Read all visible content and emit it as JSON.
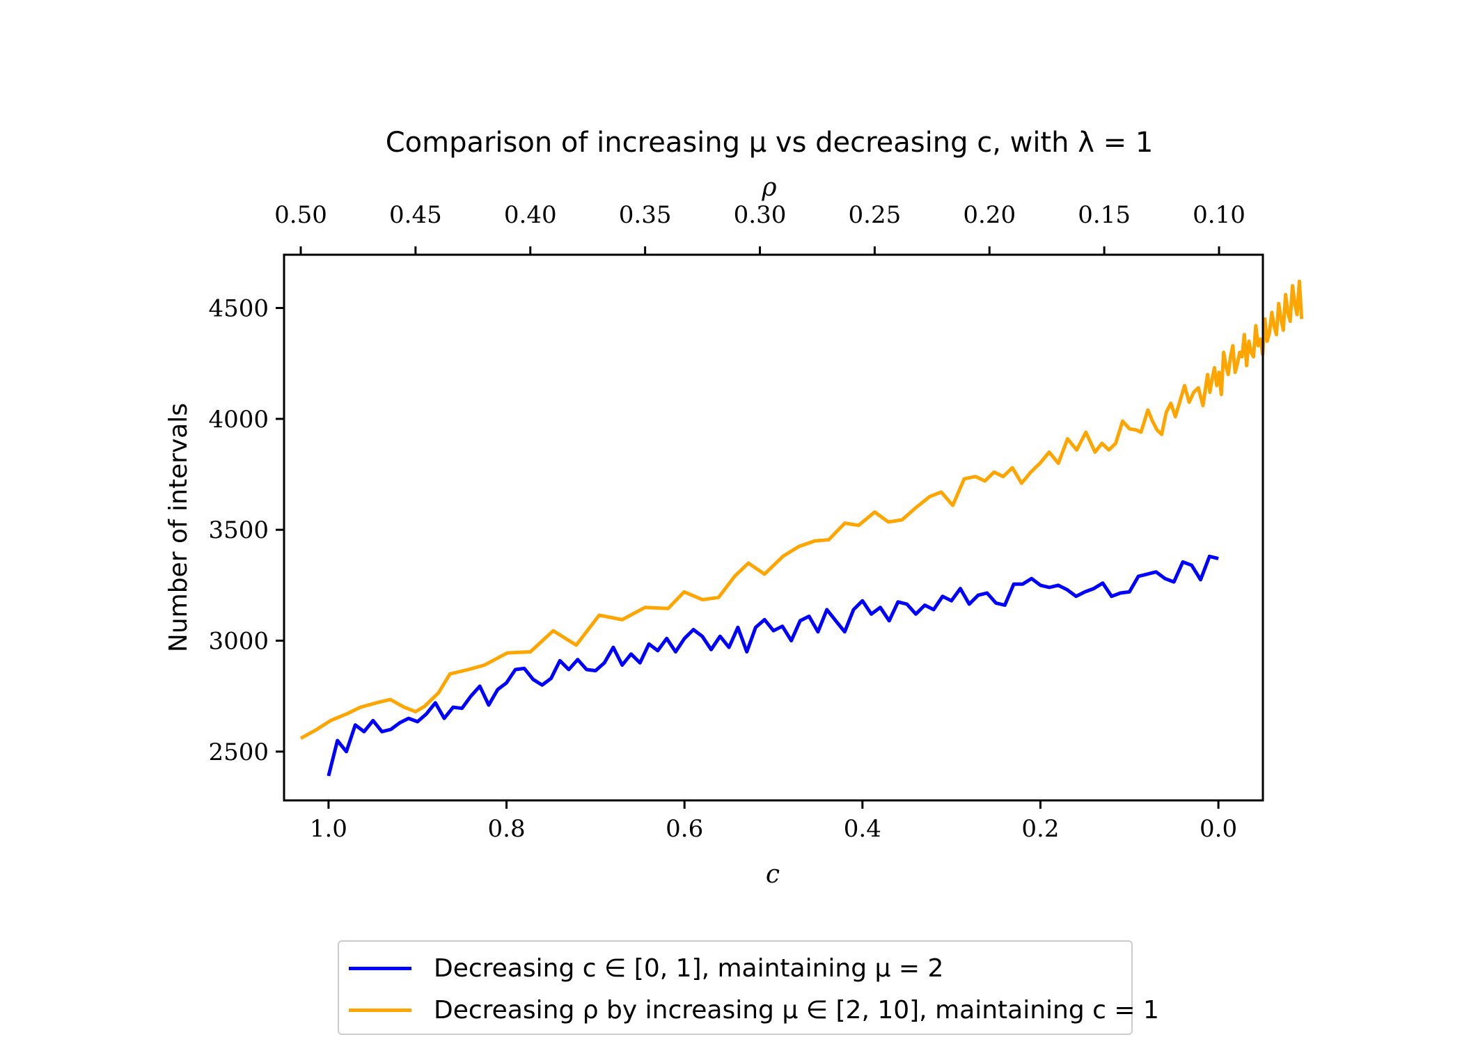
{
  "chart_data": {
    "type": "line",
    "title": "Comparison of increasing μ vs decreasing c, with λ = 1",
    "xlabel": "c",
    "x2label": "ρ",
    "ylabel": "Number of intervals",
    "xlim": [
      1.05,
      -0.05
    ],
    "x2lim": [
      0.5,
      0.1
    ],
    "ylim": [
      2280,
      4740
    ],
    "x_ticks": [
      "1.0",
      "0.8",
      "0.6",
      "0.4",
      "0.2",
      "0.0"
    ],
    "x2_ticks": [
      "0.50",
      "0.45",
      "0.40",
      "0.35",
      "0.30",
      "0.25",
      "0.20",
      "0.15",
      "0.10"
    ],
    "y_ticks": [
      "2500",
      "3000",
      "3500",
      "4000",
      "4500"
    ],
    "grid": false,
    "legend_position": "bottom-outside",
    "series": [
      {
        "name": "Decreasing c ∈ [0, 1], maintaining μ = 2",
        "color": "#0000ff",
        "axis": "c",
        "points": [
          [
            1.0,
            2390
          ],
          [
            0.99,
            2550
          ],
          [
            0.98,
            2500
          ],
          [
            0.97,
            2620
          ],
          [
            0.96,
            2590
          ],
          [
            0.95,
            2640
          ],
          [
            0.94,
            2590
          ],
          [
            0.93,
            2600
          ],
          [
            0.92,
            2630
          ],
          [
            0.91,
            2650
          ],
          [
            0.9,
            2635
          ],
          [
            0.89,
            2670
          ],
          [
            0.88,
            2720
          ],
          [
            0.87,
            2650
          ],
          [
            0.86,
            2700
          ],
          [
            0.85,
            2695
          ],
          [
            0.84,
            2750
          ],
          [
            0.83,
            2795
          ],
          [
            0.82,
            2710
          ],
          [
            0.81,
            2780
          ],
          [
            0.8,
            2810
          ],
          [
            0.79,
            2870
          ],
          [
            0.78,
            2875
          ],
          [
            0.77,
            2825
          ],
          [
            0.76,
            2800
          ],
          [
            0.75,
            2830
          ],
          [
            0.74,
            2910
          ],
          [
            0.73,
            2870
          ],
          [
            0.72,
            2915
          ],
          [
            0.71,
            2870
          ],
          [
            0.7,
            2865
          ],
          [
            0.69,
            2900
          ],
          [
            0.68,
            2970
          ],
          [
            0.67,
            2890
          ],
          [
            0.66,
            2940
          ],
          [
            0.65,
            2900
          ],
          [
            0.64,
            2985
          ],
          [
            0.63,
            2955
          ],
          [
            0.62,
            3010
          ],
          [
            0.61,
            2950
          ],
          [
            0.6,
            3010
          ],
          [
            0.59,
            3050
          ],
          [
            0.58,
            3020
          ],
          [
            0.57,
            2960
          ],
          [
            0.56,
            3020
          ],
          [
            0.55,
            2970
          ],
          [
            0.54,
            3060
          ],
          [
            0.53,
            2950
          ],
          [
            0.52,
            3060
          ],
          [
            0.51,
            3095
          ],
          [
            0.5,
            3045
          ],
          [
            0.49,
            3065
          ],
          [
            0.48,
            3000
          ],
          [
            0.47,
            3090
          ],
          [
            0.46,
            3110
          ],
          [
            0.45,
            3040
          ],
          [
            0.44,
            3140
          ],
          [
            0.43,
            3090
          ],
          [
            0.42,
            3040
          ],
          [
            0.41,
            3140
          ],
          [
            0.4,
            3180
          ],
          [
            0.39,
            3120
          ],
          [
            0.38,
            3150
          ],
          [
            0.37,
            3090
          ],
          [
            0.36,
            3175
          ],
          [
            0.35,
            3165
          ],
          [
            0.34,
            3120
          ],
          [
            0.33,
            3160
          ],
          [
            0.32,
            3140
          ],
          [
            0.31,
            3200
          ],
          [
            0.3,
            3180
          ],
          [
            0.29,
            3235
          ],
          [
            0.28,
            3165
          ],
          [
            0.27,
            3205
          ],
          [
            0.26,
            3215
          ],
          [
            0.25,
            3170
          ],
          [
            0.24,
            3160
          ],
          [
            0.23,
            3255
          ],
          [
            0.22,
            3255
          ],
          [
            0.21,
            3280
          ],
          [
            0.2,
            3250
          ],
          [
            0.19,
            3240
          ],
          [
            0.18,
            3250
          ],
          [
            0.17,
            3230
          ],
          [
            0.16,
            3200
          ],
          [
            0.15,
            3220
          ],
          [
            0.14,
            3235
          ],
          [
            0.13,
            3260
          ],
          [
            0.12,
            3200
          ],
          [
            0.11,
            3215
          ],
          [
            0.1,
            3220
          ],
          [
            0.09,
            3290
          ],
          [
            0.08,
            3300
          ],
          [
            0.07,
            3310
          ],
          [
            0.06,
            3280
          ],
          [
            0.05,
            3265
          ],
          [
            0.04,
            3355
          ],
          [
            0.03,
            3340
          ],
          [
            0.02,
            3275
          ],
          [
            0.01,
            3380
          ],
          [
            0.0,
            3370
          ]
        ]
      },
      {
        "name": "Decreasing ρ by increasing μ ∈ [2, 10], maintaining c = 1",
        "color": "#ffa500",
        "axis": "rho",
        "points": [
          [
            0.5,
            2560
          ],
          [
            0.493,
            2600
          ],
          [
            0.487,
            2640
          ],
          [
            0.48,
            2670
          ],
          [
            0.474,
            2700
          ],
          [
            0.467,
            2720
          ],
          [
            0.461,
            2735
          ],
          [
            0.455,
            2700
          ],
          [
            0.45,
            2680
          ],
          [
            0.446,
            2705
          ],
          [
            0.44,
            2765
          ],
          [
            0.435,
            2850
          ],
          [
            0.427,
            2870
          ],
          [
            0.42,
            2890
          ],
          [
            0.41,
            2945
          ],
          [
            0.4,
            2950
          ],
          [
            0.39,
            3045
          ],
          [
            0.38,
            2980
          ],
          [
            0.37,
            3115
          ],
          [
            0.36,
            3095
          ],
          [
            0.35,
            3150
          ],
          [
            0.34,
            3145
          ],
          [
            0.333,
            3220
          ],
          [
            0.325,
            3185
          ],
          [
            0.318,
            3195
          ],
          [
            0.311,
            3290
          ],
          [
            0.305,
            3350
          ],
          [
            0.298,
            3300
          ],
          [
            0.29,
            3380
          ],
          [
            0.283,
            3425
          ],
          [
            0.276,
            3450
          ],
          [
            0.27,
            3455
          ],
          [
            0.263,
            3530
          ],
          [
            0.257,
            3520
          ],
          [
            0.25,
            3580
          ],
          [
            0.244,
            3535
          ],
          [
            0.238,
            3545
          ],
          [
            0.232,
            3600
          ],
          [
            0.226,
            3650
          ],
          [
            0.221,
            3670
          ],
          [
            0.216,
            3610
          ],
          [
            0.211,
            3730
          ],
          [
            0.206,
            3740
          ],
          [
            0.202,
            3720
          ],
          [
            0.198,
            3760
          ],
          [
            0.194,
            3740
          ],
          [
            0.19,
            3780
          ],
          [
            0.186,
            3710
          ],
          [
            0.182,
            3760
          ],
          [
            0.178,
            3800
          ],
          [
            0.174,
            3850
          ],
          [
            0.17,
            3800
          ],
          [
            0.166,
            3910
          ],
          [
            0.162,
            3860
          ],
          [
            0.158,
            3940
          ],
          [
            0.154,
            3850
          ],
          [
            0.151,
            3890
          ],
          [
            0.148,
            3860
          ],
          [
            0.145,
            3890
          ],
          [
            0.142,
            3990
          ],
          [
            0.139,
            3955
          ],
          [
            0.136,
            3950
          ],
          [
            0.134,
            3940
          ],
          [
            0.131,
            4040
          ],
          [
            0.129,
            3990
          ],
          [
            0.127,
            3950
          ],
          [
            0.125,
            3930
          ],
          [
            0.123,
            4030
          ],
          [
            0.121,
            4070
          ],
          [
            0.119,
            4010
          ],
          [
            0.117,
            4080
          ],
          [
            0.115,
            4150
          ],
          [
            0.113,
            4075
          ],
          [
            0.111,
            4120
          ],
          [
            0.109,
            4140
          ],
          [
            0.107,
            4060
          ],
          [
            0.106,
            4130
          ],
          [
            0.105,
            4200
          ],
          [
            0.104,
            4120
          ],
          [
            0.103,
            4180
          ],
          [
            0.102,
            4230
          ],
          [
            0.101,
            4150
          ],
          [
            0.1,
            4210
          ],
          [
            0.099,
            4110
          ],
          [
            0.098,
            4300
          ],
          [
            0.097,
            4240
          ],
          [
            0.096,
            4200
          ],
          [
            0.095,
            4280
          ],
          [
            0.094,
            4330
          ],
          [
            0.093,
            4210
          ],
          [
            0.092,
            4250
          ],
          [
            0.091,
            4300
          ],
          [
            0.09,
            4280
          ],
          [
            0.089,
            4380
          ],
          [
            0.088,
            4240
          ],
          [
            0.087,
            4350
          ],
          [
            0.086,
            4300
          ],
          [
            0.085,
            4280
          ],
          [
            0.084,
            4420
          ],
          [
            0.083,
            4330
          ],
          [
            0.082,
            4360
          ],
          [
            0.081,
            4290
          ],
          [
            0.08,
            4450
          ],
          [
            0.079,
            4350
          ],
          [
            0.078,
            4390
          ],
          [
            0.077,
            4480
          ],
          [
            0.076,
            4420
          ],
          [
            0.075,
            4380
          ],
          [
            0.074,
            4520
          ],
          [
            0.073,
            4450
          ],
          [
            0.072,
            4400
          ],
          [
            0.071,
            4560
          ],
          [
            0.07,
            4480
          ],
          [
            0.069,
            4440
          ],
          [
            0.068,
            4600
          ],
          [
            0.067,
            4520
          ],
          [
            0.066,
            4470
          ],
          [
            0.065,
            4620
          ],
          [
            0.064,
            4450
          ]
        ]
      }
    ]
  }
}
